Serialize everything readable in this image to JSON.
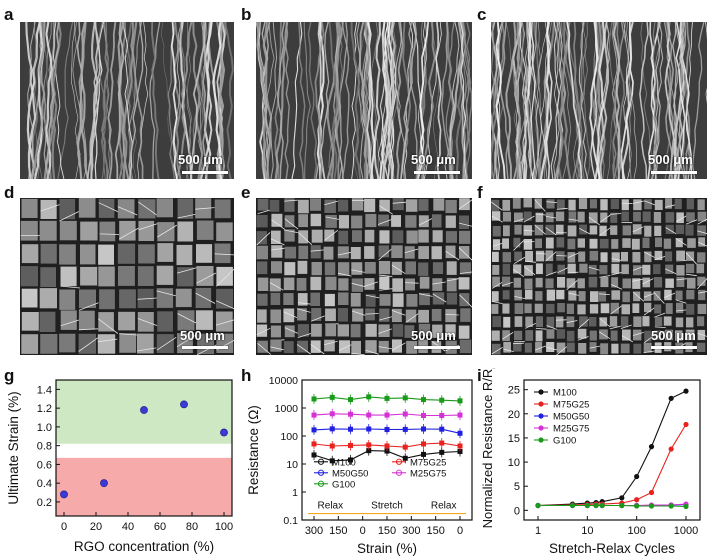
{
  "panels": {
    "a": "a",
    "b": "b",
    "c": "c",
    "d": "d",
    "e": "e",
    "f": "f",
    "g": "g",
    "h": "h",
    "i": "i"
  },
  "scale_labels": {
    "a": "500 μm",
    "b": "500 μm",
    "c": "500 μm",
    "d": "500 μm",
    "e": "500 μm",
    "f": "500 μm"
  },
  "chart_data": [
    {
      "id": "g",
      "type": "scatter",
      "title": "",
      "xlabel": "RGO concentration (%)",
      "ylabel": "Ultimate Strain (%)",
      "xlim": [
        -5,
        105
      ],
      "ylim": [
        0.05,
        1.5
      ],
      "xticks": [
        "0",
        "20",
        "40",
        "60",
        "80",
        "100"
      ],
      "yticks": [
        "0.2",
        "0.4",
        "0.6",
        "0.8",
        "1.0",
        "1.2",
        "1.4"
      ],
      "x": [
        0,
        25,
        50,
        75,
        100
      ],
      "y": [
        0.28,
        0.4,
        1.18,
        1.24,
        0.94
      ],
      "point_color": "#3a3ad6",
      "bands": [
        {
          "name": "green-band",
          "from": 0.82,
          "to": 1.5,
          "color": "#cfe8c4"
        },
        {
          "name": "red-band",
          "from": 0.05,
          "to": 0.67,
          "color": "#f6aaaa"
        }
      ]
    },
    {
      "id": "h",
      "type": "line",
      "scale": "log",
      "xlabel": "Strain (%)",
      "ylabel": "Resistance (Ω)",
      "ylim_log10": [
        -1,
        4
      ],
      "xticks": [
        "300",
        "150",
        "0",
        "150",
        "300",
        "150",
        "0"
      ],
      "yticks": [
        "0.1",
        "1",
        "10",
        "100",
        "1000",
        "10000"
      ],
      "phases": [
        "Relax",
        "Stretch",
        "Relax"
      ],
      "phase_color": "#f5a623",
      "series": [
        {
          "name": "M100",
          "color": "#111111",
          "marker": "square",
          "values": [
            21,
            13,
            14,
            30,
            29,
            16,
            22,
            26,
            28
          ]
        },
        {
          "name": "M75G25",
          "color": "#e8231f",
          "marker": "circle",
          "values": [
            52,
            44,
            46,
            48,
            44,
            40,
            52,
            56,
            44
          ]
        },
        {
          "name": "M50G50",
          "color": "#2020e0",
          "marker": "triangle",
          "values": [
            165,
            180,
            175,
            178,
            170,
            172,
            178,
            175,
            125
          ]
        },
        {
          "name": "M25G75",
          "color": "#d433d4",
          "marker": "diamond",
          "values": [
            560,
            620,
            600,
            560,
            560,
            610,
            540,
            540,
            560
          ]
        },
        {
          "name": "G100",
          "color": "#1a9a1a",
          "marker": "square",
          "values": [
            2100,
            2400,
            2000,
            2500,
            2200,
            2300,
            2000,
            1900,
            1800
          ]
        }
      ]
    },
    {
      "id": "i",
      "type": "line",
      "xscale": "log",
      "xlabel": "Stretch-Relax Cycles",
      "ylabel": "Normalized Resistance R/R",
      "ylabel_sub": "0",
      "xticks": [
        "1",
        "10",
        "100",
        "1000"
      ],
      "yticks": [
        "0",
        "5",
        "10",
        "15",
        "20",
        "25"
      ],
      "ylim": [
        -2,
        27
      ],
      "x": [
        1,
        5,
        10,
        15,
        20,
        50,
        100,
        200,
        500,
        1000
      ],
      "series": [
        {
          "name": "M100",
          "color": "#111111",
          "values": [
            1,
            1.3,
            1.5,
            1.6,
            1.8,
            2.6,
            7.0,
            13.2,
            23.2,
            24.7
          ]
        },
        {
          "name": "M75G25",
          "color": "#e8231f",
          "values": [
            1,
            1.1,
            1.2,
            1.3,
            1.3,
            1.5,
            2.2,
            3.7,
            12.7,
            17.8
          ]
        },
        {
          "name": "M50G50",
          "color": "#2020e0",
          "values": [
            1,
            1.0,
            1.0,
            1.0,
            1.0,
            1.0,
            1.0,
            1.0,
            1.1,
            1.2
          ]
        },
        {
          "name": "M25G75",
          "color": "#d433d4",
          "values": [
            1,
            1.0,
            1.0,
            1.0,
            1.0,
            1.0,
            1.0,
            1.1,
            1.1,
            1.3
          ]
        },
        {
          "name": "G100",
          "color": "#1a9a1a",
          "values": [
            1,
            1.0,
            1.0,
            1.0,
            1.0,
            1.0,
            0.9,
            0.9,
            0.9,
            0.8
          ]
        }
      ]
    }
  ]
}
